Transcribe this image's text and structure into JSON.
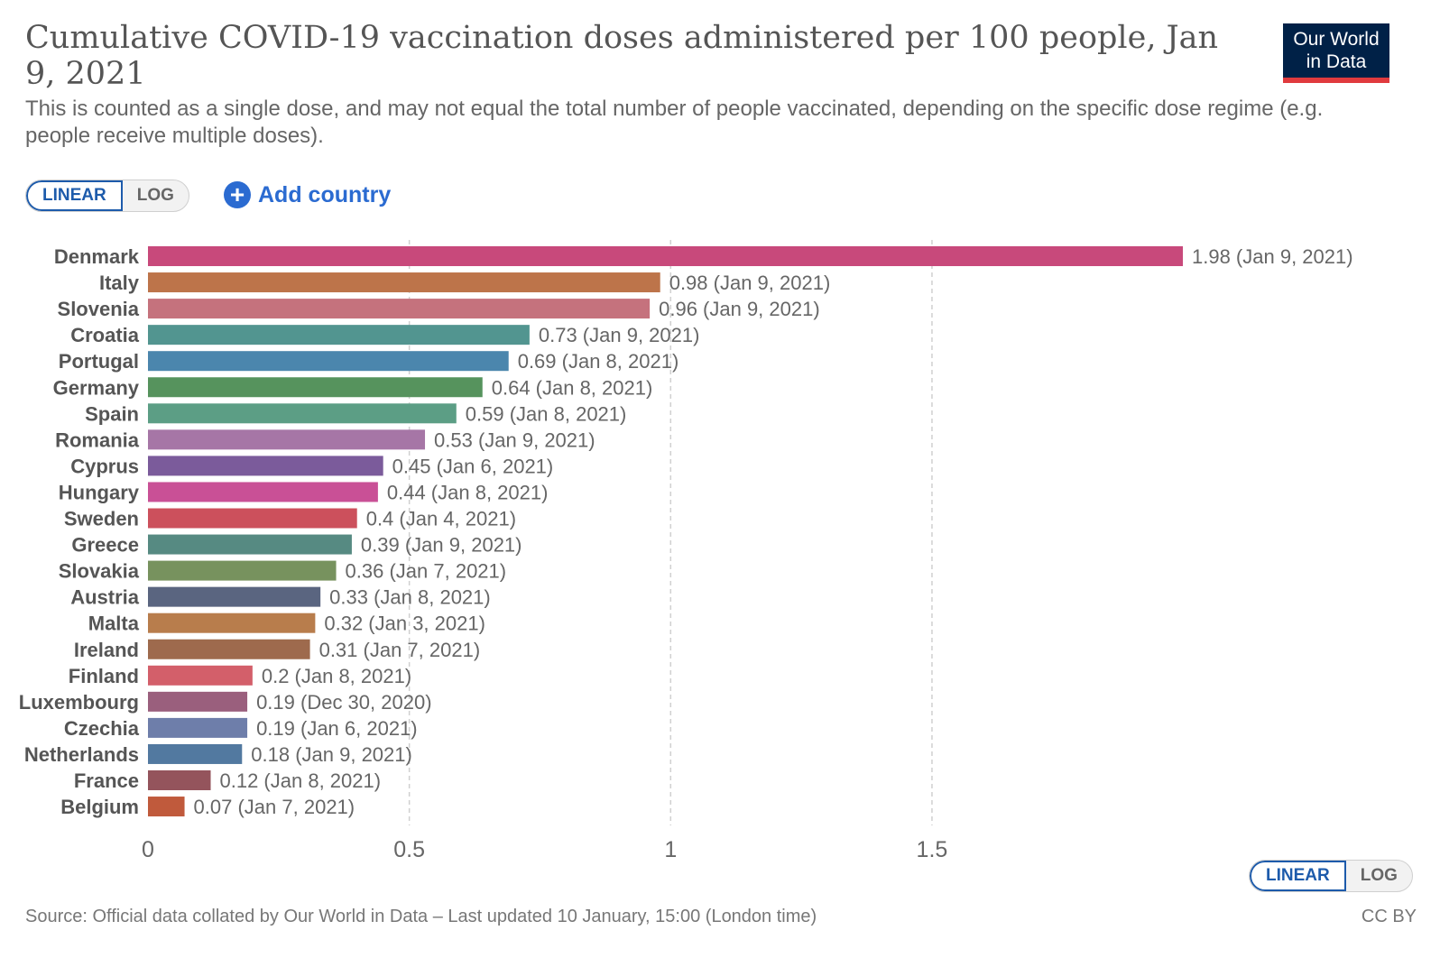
{
  "header": {
    "title": "Cumulative COVID-19 vaccination doses administered per 100 people, Jan 9, 2021",
    "subtitle": "This is counted as a single dose, and may not equal the total number of people vaccinated, depending on the specific dose regime (e.g. people receive multiple doses).",
    "logo_line1": "Our World",
    "logo_line2": "in Data"
  },
  "controls": {
    "linear_label": "LINEAR",
    "log_label": "LOG",
    "add_country_label": "Add country",
    "add_icon": "plus-circle-icon"
  },
  "footer": {
    "source": "Source: Official data collated by Our World in Data – Last updated 10 January, 15:00 (London time)",
    "license": "CC BY"
  },
  "chart_data": {
    "type": "bar",
    "orientation": "horizontal",
    "title": "Cumulative COVID-19 vaccination doses administered per 100 people, Jan 9, 2021",
    "xlim": [
      0,
      1.98
    ],
    "x_ticks": [
      "0",
      "0.5",
      "1",
      "1.5"
    ],
    "grid": true,
    "categories": [
      "Denmark",
      "Italy",
      "Slovenia",
      "Croatia",
      "Portugal",
      "Germany",
      "Spain",
      "Romania",
      "Cyprus",
      "Hungary",
      "Sweden",
      "Greece",
      "Slovakia",
      "Austria",
      "Malta",
      "Ireland",
      "Finland",
      "Luxembourg",
      "Czechia",
      "Netherlands",
      "France",
      "Belgium"
    ],
    "values": [
      1.98,
      0.98,
      0.96,
      0.73,
      0.69,
      0.64,
      0.59,
      0.53,
      0.45,
      0.44,
      0.4,
      0.39,
      0.36,
      0.33,
      0.32,
      0.31,
      0.2,
      0.19,
      0.19,
      0.18,
      0.12,
      0.07
    ],
    "dates": [
      "Jan 9, 2021",
      "Jan 9, 2021",
      "Jan 9, 2021",
      "Jan 9, 2021",
      "Jan 8, 2021",
      "Jan 8, 2021",
      "Jan 8, 2021",
      "Jan 9, 2021",
      "Jan 6, 2021",
      "Jan 8, 2021",
      "Jan 4, 2021",
      "Jan 9, 2021",
      "Jan 7, 2021",
      "Jan 8, 2021",
      "Jan 3, 2021",
      "Jan 7, 2021",
      "Jan 8, 2021",
      "Dec 30, 2020",
      "Jan 6, 2021",
      "Jan 9, 2021",
      "Jan 8, 2021",
      "Jan 7, 2021"
    ],
    "colors": [
      "#c8497b",
      "#bd744a",
      "#c5727d",
      "#529590",
      "#4b86ad",
      "#56935d",
      "#5c9e85",
      "#a676a6",
      "#7b5b9b",
      "#c95096",
      "#cc505c",
      "#568a82",
      "#77925e",
      "#5a6580",
      "#b87d4c",
      "#9e6a4d",
      "#d35f6a",
      "#9a5f7d",
      "#6e7eaa",
      "#5279a0",
      "#94545c",
      "#c05a3c"
    ]
  }
}
